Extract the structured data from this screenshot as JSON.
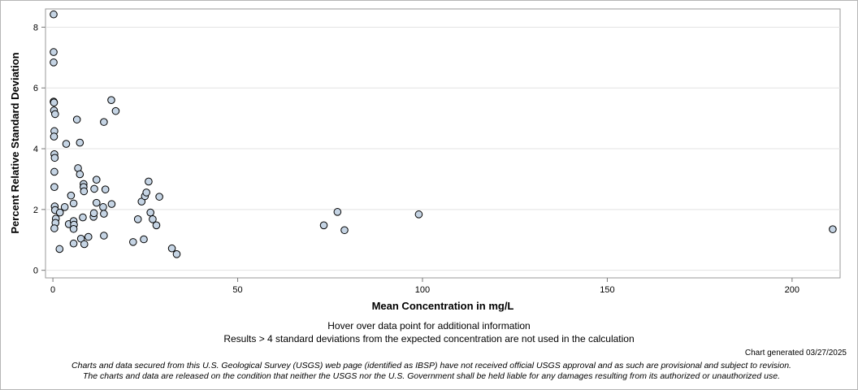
{
  "chart_data": {
    "type": "scatter",
    "title": "",
    "xlabel": "Mean Concentration in mg/L",
    "ylabel": "Percent Relative Standard Deviation",
    "xlim": [
      -2,
      213
    ],
    "ylim": [
      -0.25,
      8.6
    ],
    "xticks": [
      0,
      50,
      100,
      150,
      200
    ],
    "yticks": [
      0,
      2,
      4,
      6,
      8
    ],
    "grid": "horizontal",
    "marker_fill": "#c5d4e4",
    "marker_edge": "#000000",
    "points": [
      {
        "x": 0.2,
        "y": 8.42
      },
      {
        "x": 0.2,
        "y": 7.18
      },
      {
        "x": 0.2,
        "y": 6.84
      },
      {
        "x": 0.2,
        "y": 5.55
      },
      {
        "x": 0.3,
        "y": 5.52
      },
      {
        "x": 0.3,
        "y": 5.26
      },
      {
        "x": 0.6,
        "y": 5.14
      },
      {
        "x": 0.4,
        "y": 4.58
      },
      {
        "x": 0.3,
        "y": 4.4
      },
      {
        "x": 0.4,
        "y": 3.82
      },
      {
        "x": 0.5,
        "y": 3.7
      },
      {
        "x": 0.4,
        "y": 3.24
      },
      {
        "x": 0.4,
        "y": 2.74
      },
      {
        "x": 0.5,
        "y": 2.1
      },
      {
        "x": 0.6,
        "y": 1.98
      },
      {
        "x": 0.8,
        "y": 1.7
      },
      {
        "x": 0.7,
        "y": 1.56
      },
      {
        "x": 0.4,
        "y": 1.38
      },
      {
        "x": 1.9,
        "y": 1.9
      },
      {
        "x": 1.8,
        "y": 0.7
      },
      {
        "x": 3.2,
        "y": 2.08
      },
      {
        "x": 3.6,
        "y": 4.16
      },
      {
        "x": 4.3,
        "y": 1.52
      },
      {
        "x": 4.9,
        "y": 2.46
      },
      {
        "x": 5.6,
        "y": 2.2
      },
      {
        "x": 5.6,
        "y": 1.62
      },
      {
        "x": 5.7,
        "y": 1.5
      },
      {
        "x": 5.6,
        "y": 1.36
      },
      {
        "x": 5.6,
        "y": 0.88
      },
      {
        "x": 6.5,
        "y": 4.96
      },
      {
        "x": 6.8,
        "y": 3.36
      },
      {
        "x": 7.3,
        "y": 4.2
      },
      {
        "x": 7.3,
        "y": 3.16
      },
      {
        "x": 7.6,
        "y": 1.04
      },
      {
        "x": 8.1,
        "y": 1.74
      },
      {
        "x": 8.3,
        "y": 2.84
      },
      {
        "x": 8.3,
        "y": 2.74
      },
      {
        "x": 8.4,
        "y": 2.6
      },
      {
        "x": 8.5,
        "y": 0.86
      },
      {
        "x": 9.6,
        "y": 1.1
      },
      {
        "x": 11.0,
        "y": 1.76
      },
      {
        "x": 11.1,
        "y": 1.88
      },
      {
        "x": 11.2,
        "y": 2.68
      },
      {
        "x": 11.8,
        "y": 2.98
      },
      {
        "x": 11.8,
        "y": 2.22
      },
      {
        "x": 13.6,
        "y": 2.08
      },
      {
        "x": 13.8,
        "y": 1.86
      },
      {
        "x": 13.8,
        "y": 4.88
      },
      {
        "x": 13.8,
        "y": 1.14
      },
      {
        "x": 14.2,
        "y": 2.66
      },
      {
        "x": 15.8,
        "y": 5.6
      },
      {
        "x": 15.9,
        "y": 2.18
      },
      {
        "x": 17.0,
        "y": 5.24
      },
      {
        "x": 21.7,
        "y": 0.93
      },
      {
        "x": 23.0,
        "y": 1.68
      },
      {
        "x": 24.0,
        "y": 2.26
      },
      {
        "x": 24.6,
        "y": 1.02
      },
      {
        "x": 24.9,
        "y": 2.44
      },
      {
        "x": 25.3,
        "y": 2.56
      },
      {
        "x": 25.9,
        "y": 2.92
      },
      {
        "x": 26.4,
        "y": 1.9
      },
      {
        "x": 27.0,
        "y": 1.68
      },
      {
        "x": 28.0,
        "y": 1.48
      },
      {
        "x": 28.8,
        "y": 2.42
      },
      {
        "x": 32.2,
        "y": 0.72
      },
      {
        "x": 33.5,
        "y": 0.53
      },
      {
        "x": 73.3,
        "y": 1.48
      },
      {
        "x": 77.0,
        "y": 1.92
      },
      {
        "x": 78.9,
        "y": 1.32
      },
      {
        "x": 99.0,
        "y": 1.84
      },
      {
        "x": 211.0,
        "y": 1.35
      }
    ]
  },
  "notes": {
    "hover": "Hover over data point for additional information",
    "exclusion": "Results > 4 standard deviations from the expected concentration are not used in the calculation",
    "generated": "Chart generated 03/27/2025"
  },
  "disclaimer": {
    "line1": "Charts and data secured from this U.S. Geological Survey (USGS) web page (identified as IBSP) have not received official USGS approval and as such are provisional and subject to revision.",
    "line2": "The charts and data are released on the condition that neither the USGS nor the U.S. Government shall be held liable for any damages resulting from its authorized or unauthorized use."
  }
}
